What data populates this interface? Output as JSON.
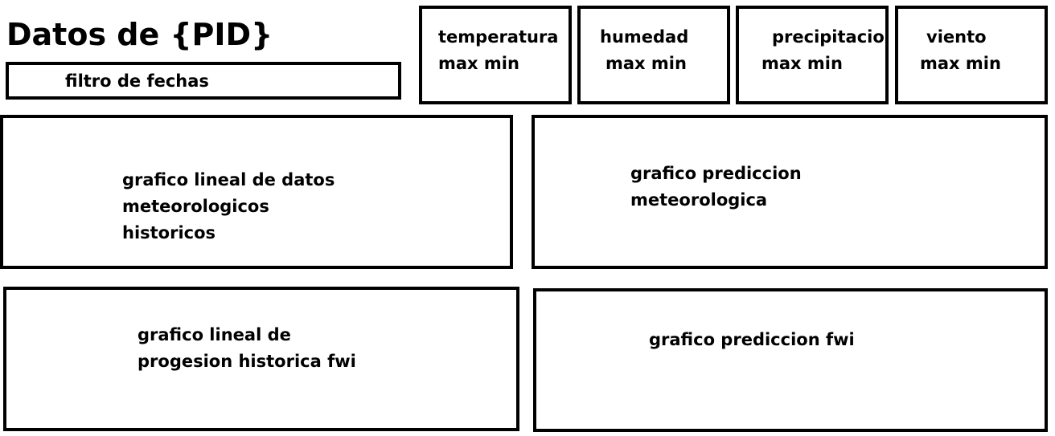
{
  "header": {
    "title": "Datos de {PID}"
  },
  "filter": {
    "label": "filtro de fechas"
  },
  "cards": {
    "temperatura": {
      "name": "temperatura",
      "range": "max min"
    },
    "humedad": {
      "name": "humedad",
      "range": "max min"
    },
    "precipitacion": {
      "name": "precipitacion",
      "range": "max min"
    },
    "viento": {
      "name": "viento",
      "range": "max min"
    }
  },
  "charts": {
    "historico_meteo": {
      "lines": [
        "grafico lineal de datos",
        "meteorologicos",
        "historicos"
      ]
    },
    "prediccion_meteo": {
      "lines": [
        "grafico prediccion",
        "meteorologica"
      ]
    },
    "historico_fwi": {
      "lines": [
        "grafico lineal de",
        "progesion historica fwi"
      ]
    },
    "prediccion_fwi": {
      "lines": [
        "grafico prediccion fwi"
      ]
    }
  }
}
